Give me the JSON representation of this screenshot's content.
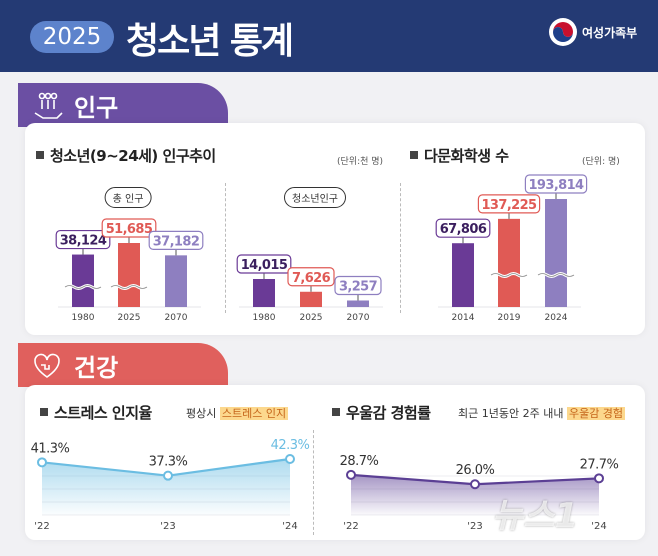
{
  "header": {
    "year": "2025",
    "title": "청소년 통계",
    "ministry": "여성가족부"
  },
  "population": {
    "tab": "인구",
    "trend_title": "청소년(9~24세) 인구추이",
    "trend_unit": "(단위:천 명)",
    "total_label": "총 인구",
    "youth_label": "청소년인구",
    "multi_title": "다문화학생 수",
    "multi_unit": "(단위: 명)"
  },
  "health": {
    "tab": "건강",
    "stress_title": "스트레스 인지율",
    "stress_note": "평상시",
    "stress_highlight": "스트레스 인지",
    "dep_title": "우울감 경험률",
    "dep_note": "최근 1년동안 2주 내내",
    "dep_highlight": "우울감 경험"
  },
  "watermark": "뉴스1",
  "chart_data": [
    {
      "type": "bar",
      "title": "총 인구",
      "categories": [
        "1980",
        "2025",
        "2070"
      ],
      "values": [
        38124,
        51685,
        37182
      ],
      "labels": [
        "38,124",
        "51,685",
        "37,182"
      ],
      "colors": [
        "#6a3a96",
        "#e05a55",
        "#8e7fc0"
      ],
      "axis_break": true
    },
    {
      "type": "bar",
      "title": "청소년인구",
      "categories": [
        "1980",
        "2025",
        "2070"
      ],
      "values": [
        14015,
        7626,
        3257
      ],
      "labels": [
        "14,015",
        "7,626",
        "3,257"
      ],
      "colors": [
        "#6a3a96",
        "#e05a55",
        "#8e7fc0"
      ]
    },
    {
      "type": "bar",
      "title": "다문화학생 수",
      "categories": [
        "2014",
        "2019",
        "2024"
      ],
      "values": [
        67806,
        137225,
        193814
      ],
      "labels": [
        "67,806",
        "137,225",
        "193,814"
      ],
      "colors": [
        "#6a3a96",
        "#e05a55",
        "#8e7fc0"
      ],
      "axis_break": true
    },
    {
      "type": "area",
      "title": "스트레스 인지율",
      "categories": [
        "'22",
        "'23",
        "'24"
      ],
      "values": [
        41.3,
        37.3,
        42.3
      ],
      "labels": [
        "41.3%",
        "37.3%",
        "42.3%"
      ],
      "color": "#6bbde2"
    },
    {
      "type": "area",
      "title": "우울감 경험률",
      "categories": [
        "'22",
        "'23",
        "'24"
      ],
      "values": [
        28.7,
        26.0,
        27.7
      ],
      "labels": [
        "28.7%",
        "26.0%",
        "27.7%"
      ],
      "color": "#5b3f94"
    }
  ]
}
